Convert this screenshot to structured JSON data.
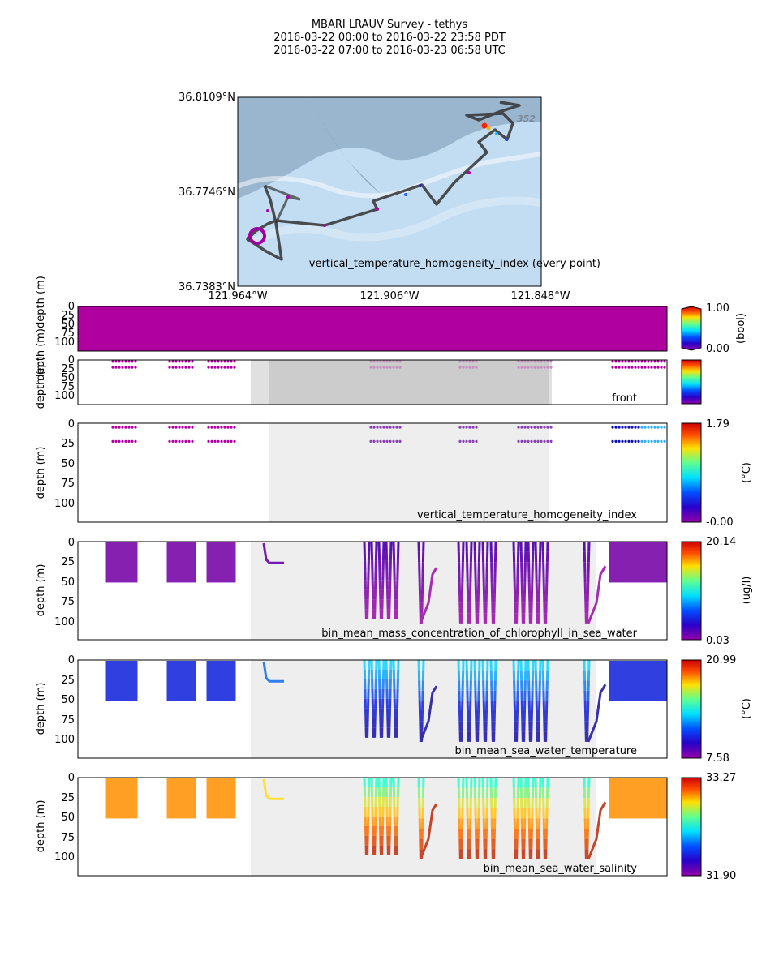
{
  "figure": {
    "title_lines": [
      "MBARI LRAUV Survey - tethys",
      "2016-03-22 00:00  to  2016-03-22 23:58 PDT",
      "2016-03-22 07:00  to  2016-03-23 06:58 UTC"
    ]
  },
  "map": {
    "lat_labels": [
      "36.8109°N",
      "36.7746°N",
      "36.7383°N"
    ],
    "lon_labels": [
      "121.964°W",
      "121.906°W",
      "121.848°W"
    ],
    "annotation": "vertical_temperature_homogeneity_index (every point)",
    "contour_label": "352",
    "track_color": "#333333",
    "water_color": "#c2dcf2",
    "shelf_color": "#8fa9c4"
  },
  "chart_data": [
    {
      "type": "scatter",
      "panel": "vertical_temperature_homogeneity_index_every_point",
      "label": "",
      "ylabel": "depth (m)depth (m)",
      "yticks": [
        "0",
        "25",
        "50",
        "75",
        "100"
      ],
      "ylim": [
        0,
        120
      ],
      "fill_color": "#b000a0",
      "colorbar": {
        "max_label": "1.00",
        "min_label": "0.00",
        "units": "(bool)"
      }
    },
    {
      "type": "scatter",
      "panel": "front",
      "label": "front",
      "ylabel": "depth (m)",
      "yticks": [
        "0",
        "25",
        "50",
        "75",
        "100"
      ],
      "ylim": [
        0,
        120
      ],
      "point_depths": [
        4,
        20
      ],
      "colorbar": {
        "max_label": "",
        "min_label": "",
        "units": ""
      }
    },
    {
      "type": "scatter",
      "panel": "vertical_temperature_homogeneity_index",
      "label": "vertical_temperature_homogeneity_index",
      "ylabel": "depth (m)",
      "yticks": [
        "0",
        "25",
        "50",
        "75",
        "100"
      ],
      "ylim": [
        0,
        120
      ],
      "point_depths": [
        5,
        22
      ],
      "colorbar": {
        "max_label": "1.79",
        "min_label": "-0.00",
        "units": "(°C)"
      }
    },
    {
      "type": "scatter",
      "panel": "bin_mean_mass_concentration_of_chlorophyll_in_sea_water",
      "label": "bin_mean_mass_concentration_of_chlorophyll_in_sea_water",
      "ylabel": "depth (m)",
      "yticks": [
        "0",
        "25",
        "50",
        "75",
        "100"
      ],
      "ylim": [
        0,
        120
      ],
      "colorbar": {
        "max_label": "20.14",
        "min_label": "0.03",
        "units": "(ug/l)"
      }
    },
    {
      "type": "scatter",
      "panel": "bin_mean_sea_water_temperature",
      "label": "bin_mean_sea_water_temperature",
      "ylabel": "depth (m)",
      "yticks": [
        "0",
        "25",
        "50",
        "75",
        "100"
      ],
      "ylim": [
        0,
        120
      ],
      "colorbar": {
        "max_label": "20.99",
        "min_label": "7.58",
        "units": "(°C)"
      }
    },
    {
      "type": "scatter",
      "panel": "bin_mean_sea_water_salinity",
      "label": "bin_mean_sea_water_salinity",
      "ylabel": "depth (m)",
      "yticks": [
        "0",
        "25",
        "50",
        "75",
        "100"
      ],
      "ylim": [
        0,
        120
      ],
      "colorbar": {
        "max_label": "33.27",
        "min_label": "31.90",
        "units": ""
      }
    }
  ]
}
